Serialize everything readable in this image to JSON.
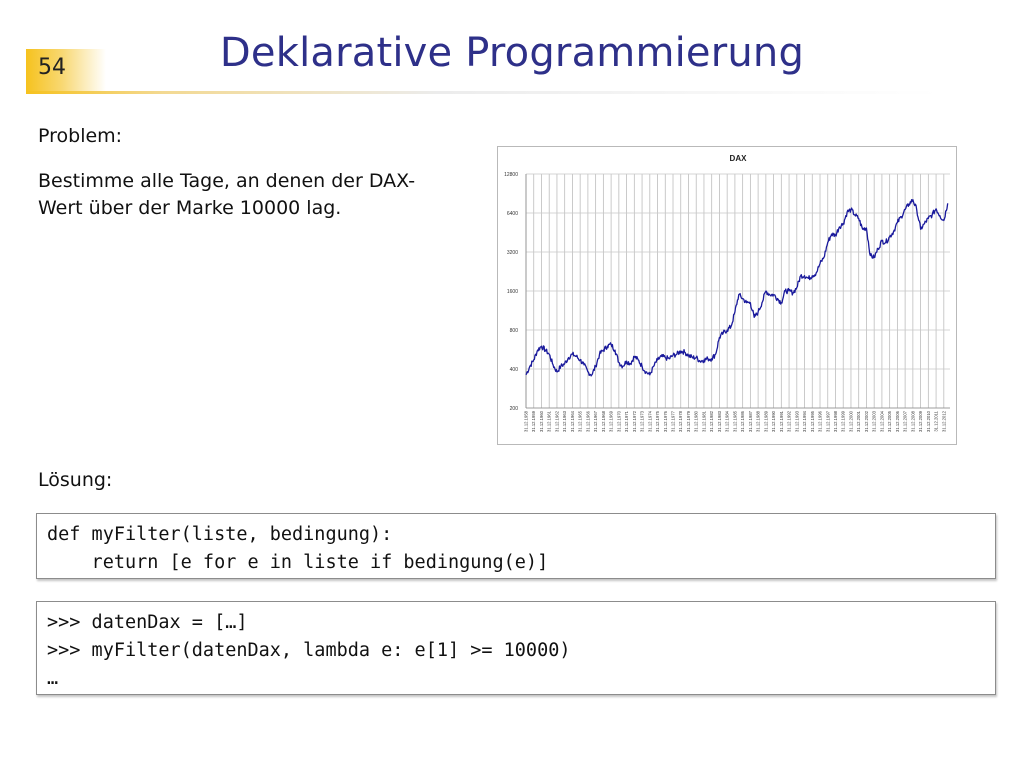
{
  "slide": {
    "number": "54",
    "title": "Deklarative Programmierung",
    "problem_label": "Problem:",
    "problem_text_line1": "Bestimme alle Tage, an denen der DAX-",
    "problem_text_line2": "Wert über der Marke 10000 lag.",
    "solution_label": "Lösung:"
  },
  "code_block_1": {
    "lines": [
      "def myFilter(liste, bedingung):",
      "    return [e for e in liste if bedingung(e)]"
    ]
  },
  "code_block_2": {
    "lines": [
      ">>> datenDax = […]",
      ">>> myFilter(datenDax, lambda e: e[1] >= 10000)",
      "…"
    ]
  },
  "colors": {
    "title": "#2e3089",
    "accent": "#f6c21e",
    "series": "#1a1a9c"
  },
  "chart_data": {
    "type": "line",
    "title": "DAX",
    "y_scale": "log",
    "ylim": [
      200,
      12800
    ],
    "y_ticks": [
      "12800",
      "6400",
      "3200",
      "1600",
      "800",
      "400",
      "200"
    ],
    "y_tick_values": [
      12800,
      6400,
      3200,
      1600,
      800,
      400,
      200
    ],
    "x_tick_labels": [
      "31.12.1958",
      "31.12.1959",
      "31.12.1960",
      "31.12.1961",
      "31.12.1962",
      "31.12.1963",
      "31.12.1964",
      "31.12.1965",
      "31.12.1966",
      "31.12.1967",
      "31.12.1968",
      "31.12.1969",
      "31.12.1970",
      "31.12.1971",
      "31.12.1972",
      "31.12.1973",
      "31.12.1974",
      "31.12.1975",
      "31.12.1976",
      "31.12.1977",
      "31.12.1978",
      "31.12.1979",
      "31.12.1980",
      "31.12.1981",
      "31.12.1982",
      "31.12.1983",
      "31.12.1984",
      "31.12.1985",
      "31.12.1986",
      "31.12.1987",
      "31.12.1988",
      "31.12.1989",
      "31.12.1990",
      "31.12.1991",
      "31.12.1992",
      "31.12.1993",
      "31.12.1994",
      "31.12.1995",
      "31.12.1996",
      "31.12.1997",
      "31.12.1998",
      "31.12.1999",
      "31.12.2000",
      "31.12.2001",
      "31.12.2002",
      "31.12.2003",
      "31.12.2004",
      "31.12.2005",
      "31.12.2006",
      "31.12.2007",
      "31.12.2008",
      "31.12.2009",
      "31.12.2010",
      "31.12.2011",
      "31.12.2012"
    ],
    "grid": true,
    "legend": "none",
    "series": [
      {
        "x": [
          1958.0,
          1958.5,
          1959.0,
          1959.5,
          1960.0,
          1960.5,
          1961.0,
          1961.5,
          1962.0,
          1962.5,
          1963.0,
          1963.5,
          1964.0,
          1964.5,
          1965.0,
          1965.5,
          1966.0,
          1966.5,
          1967.0,
          1967.5,
          1968.0,
          1968.5,
          1969.0,
          1969.5,
          1970.0,
          1970.5,
          1971.0,
          1971.5,
          1972.0,
          1972.5,
          1973.0,
          1973.5,
          1974.0,
          1974.5,
          1975.0,
          1975.5,
          1976.0,
          1976.5,
          1977.0,
          1977.5,
          1978.0,
          1978.5,
          1979.0,
          1979.5,
          1980.0,
          1980.5,
          1981.0,
          1981.5,
          1982.0,
          1982.5,
          1983.0,
          1983.5,
          1984.0,
          1984.5,
          1985.0,
          1985.5,
          1986.0,
          1986.5,
          1987.0,
          1987.5,
          1988.0,
          1988.5,
          1989.0,
          1989.5,
          1990.0,
          1990.5,
          1991.0,
          1991.5,
          1992.0,
          1992.5,
          1993.0,
          1993.5,
          1994.0,
          1994.5,
          1995.0,
          1995.5,
          1996.0,
          1996.5,
          1997.0,
          1997.5,
          1998.0,
          1998.5,
          1999.0,
          1999.5,
          2000.0,
          2000.5,
          2001.0,
          2001.5,
          2002.0,
          2002.5,
          2003.0,
          2003.5,
          2004.0,
          2004.5,
          2005.0,
          2005.5,
          2006.0,
          2006.5,
          2007.0,
          2007.5,
          2008.0,
          2008.5,
          2009.0,
          2009.5,
          2010.0,
          2010.5,
          2011.0,
          2011.5,
          2012.0,
          2012.5
        ],
        "y": [
          360,
          420,
          470,
          560,
          600,
          560,
          520,
          430,
          380,
          420,
          440,
          490,
          520,
          500,
          470,
          430,
          380,
          360,
          420,
          520,
          560,
          600,
          620,
          560,
          450,
          420,
          460,
          440,
          500,
          470,
          420,
          380,
          360,
          420,
          470,
          500,
          490,
          480,
          510,
          520,
          550,
          540,
          510,
          490,
          490,
          460,
          470,
          480,
          480,
          520,
          700,
          760,
          800,
          850,
          1100,
          1500,
          1400,
          1300,
          1300,
          1000,
          1100,
          1300,
          1600,
          1500,
          1500,
          1400,
          1300,
          1600,
          1600,
          1550,
          1700,
          2100,
          2100,
          2000,
          2100,
          2200,
          2600,
          2900,
          3800,
          4400,
          4300,
          5000,
          5300,
          6500,
          6800,
          6200,
          5800,
          4800,
          4900,
          3000,
          2900,
          3400,
          3900,
          3800,
          4200,
          4600,
          5400,
          6000,
          6800,
          7500,
          8100,
          6800,
          4800,
          5300,
          5800,
          6200,
          6900,
          6100,
          5600,
          7600
        ]
      }
    ]
  }
}
